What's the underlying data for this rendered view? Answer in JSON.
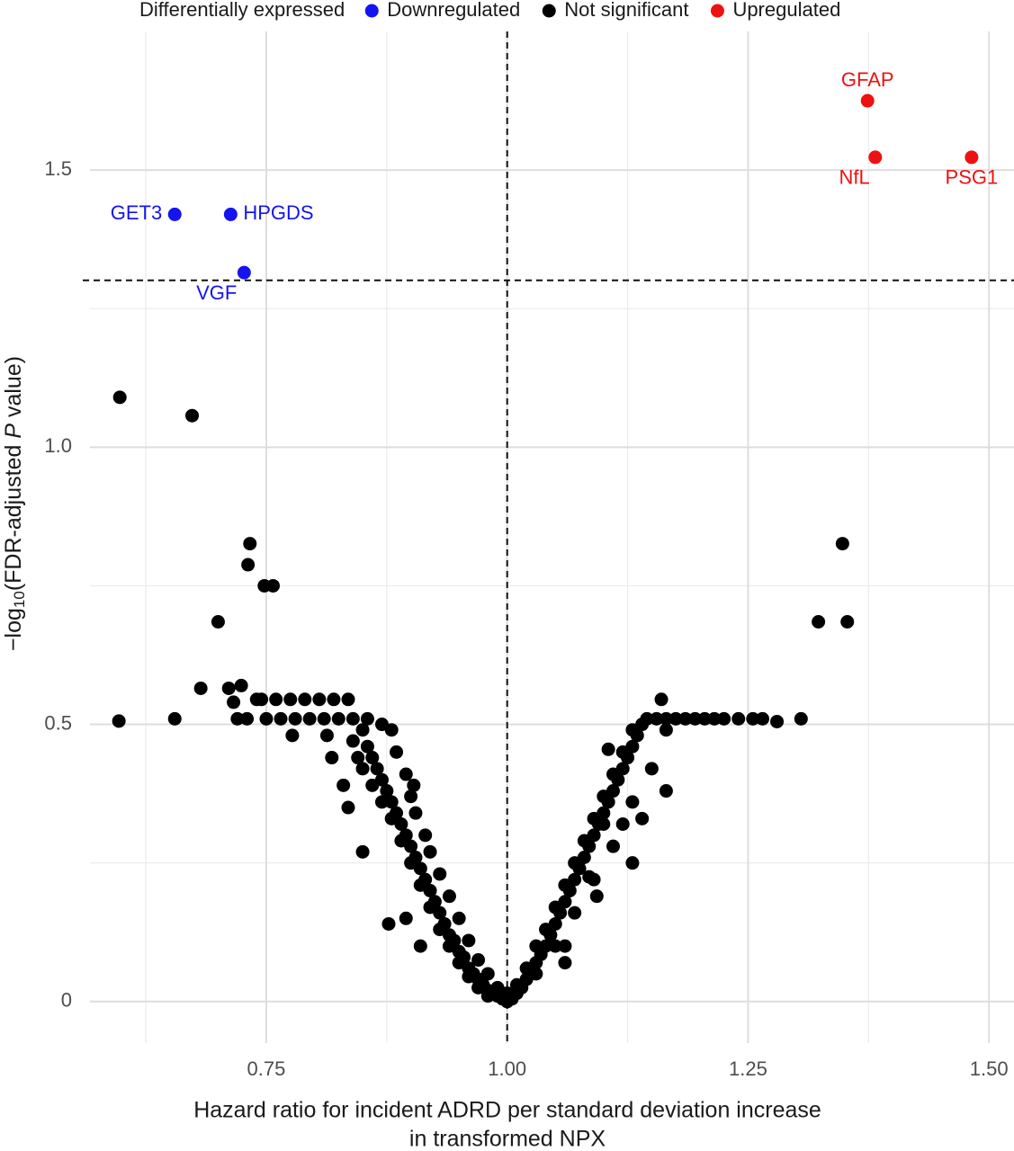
{
  "chart_data": {
    "type": "scatter",
    "legend_title": "Differentially expressed",
    "x_label": [
      "Hazard ratio for incident ADRD per standard deviation increase",
      "in transformed NPX"
    ],
    "y_label": {
      "prefix": "−log",
      "subscript": "10",
      "middle": "(FDR-adjusted ",
      "italic": "P",
      "suffix": " value)"
    },
    "xlim": [
      0.567,
      1.526
    ],
    "ylim": [
      -0.075,
      1.75
    ],
    "xticks": [
      0.75,
      {
        "value": 1,
        "label": "1.00"
      },
      1.25,
      {
        "value": 1.5,
        "label": "1.50"
      }
    ],
    "yticks": [
      0,
      0.5,
      {
        "value": 1,
        "label": "1.0"
      },
      1.5
    ],
    "x_minor_ticks": [
      0.625,
      0.875,
      1.125,
      1.375
    ],
    "y_minor_ticks": [
      0.25,
      0.75,
      1.25
    ],
    "grid": true,
    "hline": 1.301,
    "vline": 1,
    "legend_position": "top",
    "series": [
      {
        "name": "Downregulated",
        "color": "#1414f0",
        "x": [
          0.655,
          0.713,
          0.727
        ],
        "values": [
          1.42,
          1.42,
          1.315
        ],
        "labels": [
          "GET3",
          "HPGDS",
          "VGF"
        ]
      },
      {
        "name": "Not significant",
        "color": "#000000",
        "x": [
          0.598,
          0.673,
          0.733,
          0.731,
          0.748,
          0.757,
          0.7,
          0.682,
          0.597,
          0.655,
          0.711,
          0.724,
          0.72,
          0.73,
          0.716,
          0.74,
          1.348,
          1.323,
          1.353,
          1.16,
          1.305,
          1.28,
          1.265,
          0.745,
          0.76,
          0.775,
          0.79,
          0.805,
          0.82,
          0.835,
          0.75,
          0.765,
          0.78,
          0.795,
          0.81,
          0.825,
          0.84,
          0.855,
          0.85,
          0.855,
          0.86,
          0.865,
          0.87,
          0.875,
          0.88,
          0.885,
          0.89,
          0.895,
          0.9,
          0.905,
          0.91,
          0.915,
          0.92,
          0.925,
          0.93,
          0.935,
          0.94,
          0.945,
          0.95,
          0.955,
          0.96,
          0.965,
          0.97,
          0.975,
          0.98,
          0.985,
          0.99,
          0.995,
          1.0,
          0.84,
          0.845,
          0.85,
          0.86,
          0.87,
          0.88,
          0.89,
          0.9,
          0.91,
          0.92,
          0.93,
          0.94,
          0.95,
          0.96,
          0.97,
          0.98,
          0.87,
          0.88,
          0.885,
          0.895,
          0.9,
          0.905,
          0.915,
          0.92,
          0.93,
          0.94,
          0.95,
          0.96,
          0.97,
          0.98,
          0.99,
          0.818,
          0.83,
          0.835,
          0.85,
          0.877,
          0.895,
          0.91,
          0.903,
          0.813,
          0.777,
          1.005,
          1.01,
          1.015,
          1.02,
          1.025,
          1.03,
          1.035,
          1.04,
          1.045,
          1.05,
          1.055,
          1.06,
          1.065,
          1.07,
          1.075,
          1.08,
          1.085,
          1.09,
          1.095,
          1.1,
          1.105,
          1.11,
          1.115,
          1.12,
          1.125,
          1.13,
          1.135,
          1.14,
          1.02,
          1.03,
          1.04,
          1.05,
          1.06,
          1.07,
          1.08,
          1.09,
          1.1,
          1.11,
          1.12,
          1.13,
          1.01,
          1.0,
          1.03,
          1.05,
          1.07,
          1.09,
          1.11,
          1.13,
          1.15,
          1.06,
          1.1,
          1.14,
          1.165,
          1.12,
          1.085,
          1.145,
          1.155,
          1.165,
          1.175,
          1.185,
          1.195,
          1.205,
          1.215,
          1.225,
          1.24,
          1.255,
          1.105,
          1.093,
          1.13,
          1.165,
          1.06
        ],
        "values": [
          1.09,
          1.057,
          0.826,
          0.788,
          0.75,
          0.75,
          0.685,
          0.565,
          0.506,
          0.51,
          0.565,
          0.57,
          0.51,
          0.51,
          0.54,
          0.545,
          0.826,
          0.685,
          0.685,
          0.545,
          0.51,
          0.505,
          0.51,
          0.545,
          0.545,
          0.545,
          0.545,
          0.545,
          0.545,
          0.545,
          0.51,
          0.51,
          0.51,
          0.51,
          0.51,
          0.51,
          0.51,
          0.51,
          0.49,
          0.46,
          0.44,
          0.42,
          0.4,
          0.38,
          0.36,
          0.34,
          0.32,
          0.3,
          0.28,
          0.26,
          0.24,
          0.22,
          0.2,
          0.18,
          0.16,
          0.14,
          0.12,
          0.11,
          0.09,
          0.08,
          0.06,
          0.05,
          0.04,
          0.03,
          0.02,
          0.015,
          0.01,
          0.005,
          0,
          0.47,
          0.44,
          0.42,
          0.39,
          0.36,
          0.33,
          0.29,
          0.25,
          0.21,
          0.17,
          0.13,
          0.1,
          0.07,
          0.045,
          0.025,
          0.01,
          0.5,
          0.49,
          0.45,
          0.41,
          0.37,
          0.34,
          0.3,
          0.27,
          0.23,
          0.19,
          0.15,
          0.11,
          0.075,
          0.05,
          0.025,
          0.44,
          0.39,
          0.35,
          0.27,
          0.14,
          0.15,
          0.1,
          0.39,
          0.48,
          0.48,
          0.005,
          0.015,
          0.025,
          0.04,
          0.055,
          0.07,
          0.085,
          0.1,
          0.12,
          0.14,
          0.16,
          0.18,
          0.2,
          0.22,
          0.24,
          0.26,
          0.28,
          0.3,
          0.32,
          0.34,
          0.36,
          0.38,
          0.4,
          0.42,
          0.44,
          0.46,
          0.48,
          0.5,
          0.06,
          0.1,
          0.13,
          0.17,
          0.21,
          0.25,
          0.29,
          0.33,
          0.37,
          0.41,
          0.45,
          0.49,
          0.03,
          0.015,
          0.05,
          0.1,
          0.16,
          0.22,
          0.28,
          0.36,
          0.42,
          0.1,
          0.32,
          0.33,
          0.49,
          0.32,
          0.225,
          0.51,
          0.51,
          0.51,
          0.51,
          0.51,
          0.51,
          0.51,
          0.51,
          0.51,
          0.51,
          0.51,
          0.455,
          0.19,
          0.25,
          0.38,
          0.07
        ]
      },
      {
        "name": "Upregulated",
        "color": "#ee1111",
        "x": [
          1.374,
          1.382,
          1.482
        ],
        "values": [
          1.625,
          1.523,
          1.523
        ],
        "labels": [
          "GFAP",
          "NfL",
          "PSG1"
        ]
      }
    ]
  }
}
